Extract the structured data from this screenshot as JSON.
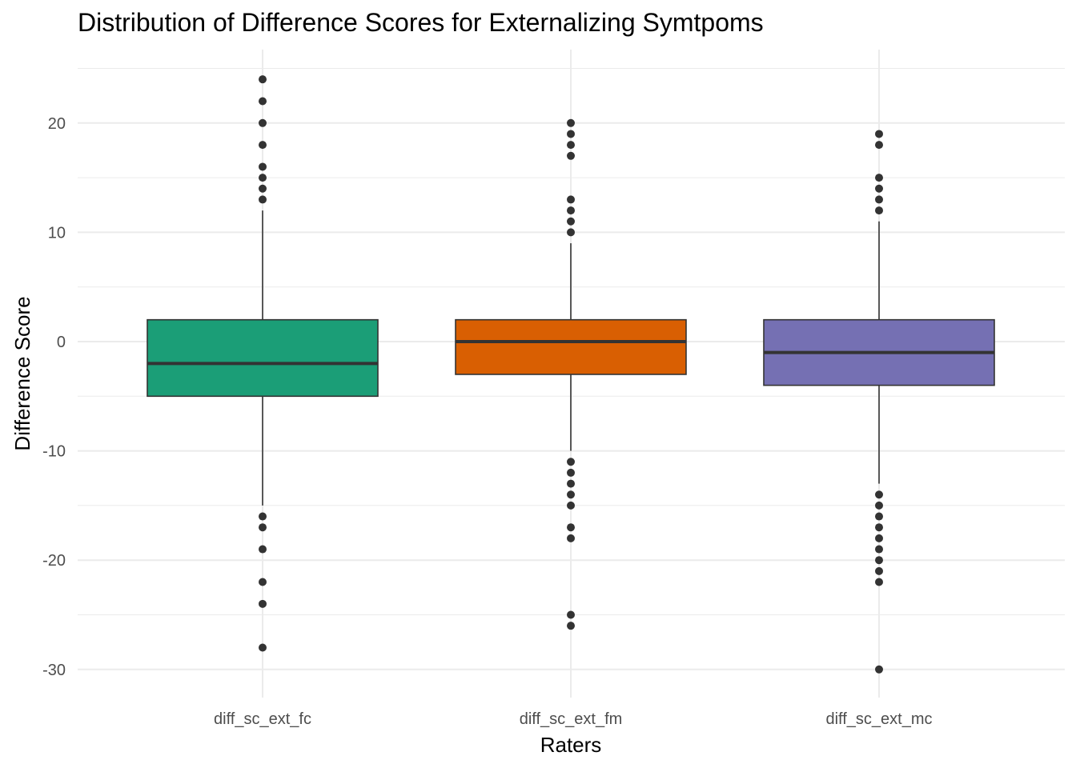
{
  "chart_data": {
    "type": "boxplot",
    "title": "Distribution of Difference Scores for Externalizing Symtpoms",
    "xlabel": "Raters",
    "ylabel": "Difference Score",
    "ylim": [
      -32,
      25
    ],
    "yticks": [
      20,
      10,
      0,
      -10,
      -20,
      -30
    ],
    "grid": true,
    "categories": [
      "diff_sc_ext_fc",
      "diff_sc_ext_fm",
      "diff_sc_ext_mc"
    ],
    "boxes": [
      {
        "category": "diff_sc_ext_fc",
        "color": "#1B9E77",
        "whisker_low": -15,
        "q1": -5,
        "median": -2,
        "q3": 2,
        "whisker_high": 12,
        "outliers": [
          24,
          22,
          20,
          18,
          16,
          15,
          14,
          13,
          -16,
          -17,
          -19,
          -22,
          -24,
          -28
        ]
      },
      {
        "category": "diff_sc_ext_fm",
        "color": "#D95F02",
        "whisker_low": -10,
        "q1": -3,
        "median": 0,
        "q3": 2,
        "whisker_high": 9,
        "outliers": [
          20,
          19,
          18,
          17,
          13,
          12,
          11,
          10,
          -11,
          -12,
          -13,
          -14,
          -15,
          -17,
          -18,
          -25,
          -26
        ]
      },
      {
        "category": "diff_sc_ext_mc",
        "color": "#7570B3",
        "whisker_low": -13,
        "q1": -4,
        "median": -1,
        "q3": 2,
        "whisker_high": 11,
        "outliers": [
          19,
          18,
          15,
          14,
          13,
          12,
          -14,
          -15,
          -16,
          -17,
          -18,
          -19,
          -20,
          -21,
          -22,
          -30
        ]
      }
    ]
  }
}
